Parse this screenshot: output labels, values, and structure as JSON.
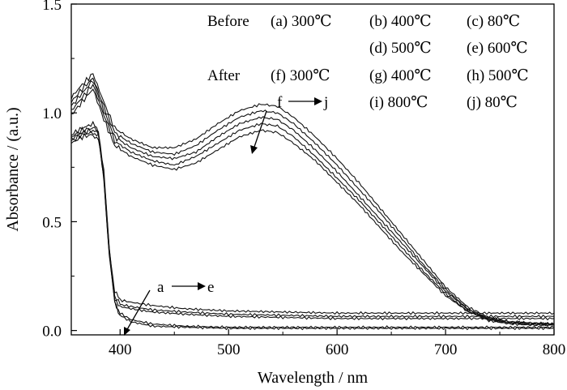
{
  "chart_data": {
    "type": "line",
    "xlabel": "Wavelength / nm",
    "ylabel": "Absorbance / (a.u.)",
    "xlim": [
      355,
      800
    ],
    "ylim": [
      -0.02,
      1.5
    ],
    "xticks": [
      400,
      500,
      600,
      700,
      800
    ],
    "yticks": [
      0.0,
      0.5,
      1.0,
      1.5
    ],
    "x_tick_labels": [
      "400",
      "500",
      "600",
      "700",
      "800"
    ],
    "y_tick_labels": [
      "0.0",
      "0.5",
      "1.0",
      "1.5"
    ],
    "grid": false,
    "legend_position": "top-right",
    "legend": {
      "before_label": "Before",
      "after_label": "After",
      "entries": [
        {
          "label": "(a) 300℃"
        },
        {
          "label": "(b) 400℃"
        },
        {
          "label": "(c) 80℃"
        },
        {
          "label": "(d) 500℃"
        },
        {
          "label": "(e) 600℃"
        },
        {
          "label": "(f) 300℃"
        },
        {
          "label": "(g) 400℃"
        },
        {
          "label": "(h) 500℃"
        },
        {
          "label": "(i) 800℃"
        },
        {
          "label": "(j) 80℃"
        }
      ]
    },
    "annotations": [
      {
        "text": "f",
        "arrow_end": "j"
      },
      {
        "text": "a",
        "arrow_end": "e"
      }
    ],
    "series": [
      {
        "label": "a",
        "x": [
          355,
          365,
          375,
          380,
          385,
          390,
          395,
          400,
          410,
          430,
          460,
          500,
          550,
          600,
          650,
          700,
          750,
          800
        ],
        "y": [
          0.86,
          0.89,
          0.9,
          0.88,
          0.7,
          0.35,
          0.13,
          0.07,
          0.04,
          0.02,
          0.015,
          0.01,
          0.01,
          0.01,
          0.01,
          0.01,
          0.01,
          0.01
        ]
      },
      {
        "label": "b",
        "x": [
          355,
          365,
          375,
          380,
          385,
          390,
          395,
          400,
          410,
          430,
          460,
          500,
          550,
          600,
          650,
          700,
          750,
          800
        ],
        "y": [
          0.87,
          0.9,
          0.91,
          0.89,
          0.7,
          0.35,
          0.13,
          0.08,
          0.05,
          0.03,
          0.02,
          0.015,
          0.015,
          0.015,
          0.015,
          0.015,
          0.015,
          0.015
        ]
      },
      {
        "label": "c",
        "x": [
          355,
          365,
          375,
          380,
          385,
          390,
          395,
          400,
          410,
          430,
          460,
          500,
          550,
          600,
          650,
          700,
          750,
          800
        ],
        "y": [
          0.88,
          0.91,
          0.92,
          0.9,
          0.71,
          0.36,
          0.15,
          0.11,
          0.1,
          0.085,
          0.075,
          0.065,
          0.06,
          0.055,
          0.055,
          0.055,
          0.055,
          0.055
        ]
      },
      {
        "label": "d",
        "x": [
          355,
          365,
          375,
          380,
          385,
          390,
          395,
          400,
          410,
          430,
          460,
          500,
          550,
          600,
          650,
          700,
          750,
          800
        ],
        "y": [
          0.89,
          0.92,
          0.93,
          0.91,
          0.72,
          0.37,
          0.16,
          0.12,
          0.11,
          0.095,
          0.085,
          0.075,
          0.07,
          0.065,
          0.065,
          0.065,
          0.065,
          0.065
        ]
      },
      {
        "label": "e",
        "x": [
          355,
          365,
          375,
          380,
          385,
          390,
          395,
          400,
          410,
          430,
          460,
          500,
          550,
          600,
          650,
          700,
          750,
          800
        ],
        "y": [
          0.9,
          0.93,
          0.95,
          0.92,
          0.73,
          0.38,
          0.18,
          0.14,
          0.13,
          0.115,
          0.1,
          0.09,
          0.085,
          0.08,
          0.08,
          0.08,
          0.08,
          0.08
        ]
      },
      {
        "label": "f",
        "x": [
          355,
          365,
          375,
          385,
          395,
          410,
          430,
          450,
          470,
          490,
          510,
          530,
          545,
          560,
          580,
          600,
          620,
          640,
          660,
          680,
          700,
          720,
          740,
          760,
          780,
          800
        ],
        "y": [
          1.07,
          1.13,
          1.18,
          1.05,
          0.93,
          0.88,
          0.84,
          0.84,
          0.88,
          0.95,
          1.01,
          1.04,
          1.03,
          0.98,
          0.89,
          0.79,
          0.68,
          0.56,
          0.44,
          0.32,
          0.2,
          0.11,
          0.06,
          0.04,
          0.035,
          0.03
        ]
      },
      {
        "label": "g",
        "x": [
          355,
          365,
          375,
          385,
          395,
          410,
          430,
          450,
          470,
          490,
          510,
          530,
          545,
          560,
          580,
          600,
          620,
          640,
          660,
          680,
          700,
          720,
          740,
          760,
          780,
          800
        ],
        "y": [
          1.05,
          1.11,
          1.16,
          1.03,
          0.91,
          0.86,
          0.82,
          0.81,
          0.85,
          0.92,
          0.98,
          1.01,
          1.0,
          0.95,
          0.86,
          0.76,
          0.65,
          0.54,
          0.42,
          0.3,
          0.19,
          0.1,
          0.055,
          0.04,
          0.035,
          0.03
        ]
      },
      {
        "label": "h",
        "x": [
          355,
          365,
          375,
          385,
          395,
          410,
          430,
          450,
          470,
          490,
          510,
          530,
          545,
          560,
          580,
          600,
          620,
          640,
          660,
          680,
          700,
          720,
          740,
          760,
          780,
          800
        ],
        "y": [
          1.03,
          1.09,
          1.15,
          1.01,
          0.89,
          0.84,
          0.8,
          0.79,
          0.82,
          0.89,
          0.95,
          0.98,
          0.97,
          0.92,
          0.83,
          0.73,
          0.62,
          0.51,
          0.4,
          0.29,
          0.18,
          0.1,
          0.05,
          0.035,
          0.03,
          0.03
        ]
      },
      {
        "label": "i",
        "x": [
          355,
          365,
          375,
          385,
          395,
          410,
          430,
          450,
          470,
          490,
          510,
          530,
          545,
          560,
          580,
          600,
          620,
          640,
          660,
          680,
          700,
          720,
          740,
          760,
          780,
          800
        ],
        "y": [
          1.01,
          1.07,
          1.13,
          0.99,
          0.87,
          0.82,
          0.78,
          0.76,
          0.8,
          0.86,
          0.92,
          0.95,
          0.94,
          0.89,
          0.8,
          0.7,
          0.6,
          0.49,
          0.38,
          0.27,
          0.17,
          0.09,
          0.05,
          0.035,
          0.03,
          0.025
        ]
      },
      {
        "label": "j",
        "x": [
          355,
          365,
          375,
          385,
          395,
          410,
          430,
          450,
          470,
          490,
          510,
          530,
          545,
          560,
          580,
          600,
          620,
          640,
          660,
          680,
          700,
          720,
          740,
          760,
          780,
          800
        ],
        "y": [
          0.99,
          1.05,
          1.11,
          0.97,
          0.85,
          0.8,
          0.76,
          0.74,
          0.77,
          0.83,
          0.89,
          0.92,
          0.91,
          0.86,
          0.78,
          0.68,
          0.58,
          0.47,
          0.36,
          0.26,
          0.16,
          0.09,
          0.045,
          0.03,
          0.025,
          0.025
        ]
      }
    ]
  }
}
